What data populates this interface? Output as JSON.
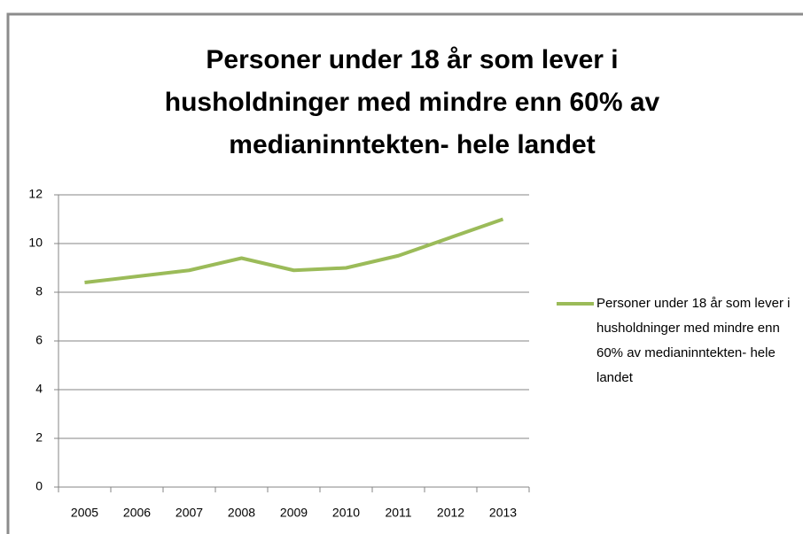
{
  "chart_data": {
    "type": "line",
    "title": "Personer under 18 år som lever i husholdninger med mindre enn 60% av medianinntekten- hele landet",
    "categories": [
      "2005",
      "2006",
      "2007",
      "2008",
      "2009",
      "2010",
      "2011",
      "2012",
      "2013"
    ],
    "series": [
      {
        "name": "Personer under 18 år som lever i husholdninger med mindre enn 60% av medianinntekten- hele landet",
        "color": "#9bbb59",
        "values": [
          8.4,
          8.65,
          8.9,
          9.4,
          8.9,
          9.0,
          9.5,
          10.25,
          11.0
        ]
      }
    ],
    "ylim": [
      0,
      12
    ],
    "yticks": [
      0,
      2,
      4,
      6,
      8,
      10,
      12
    ],
    "grid": true,
    "legend": "right"
  }
}
